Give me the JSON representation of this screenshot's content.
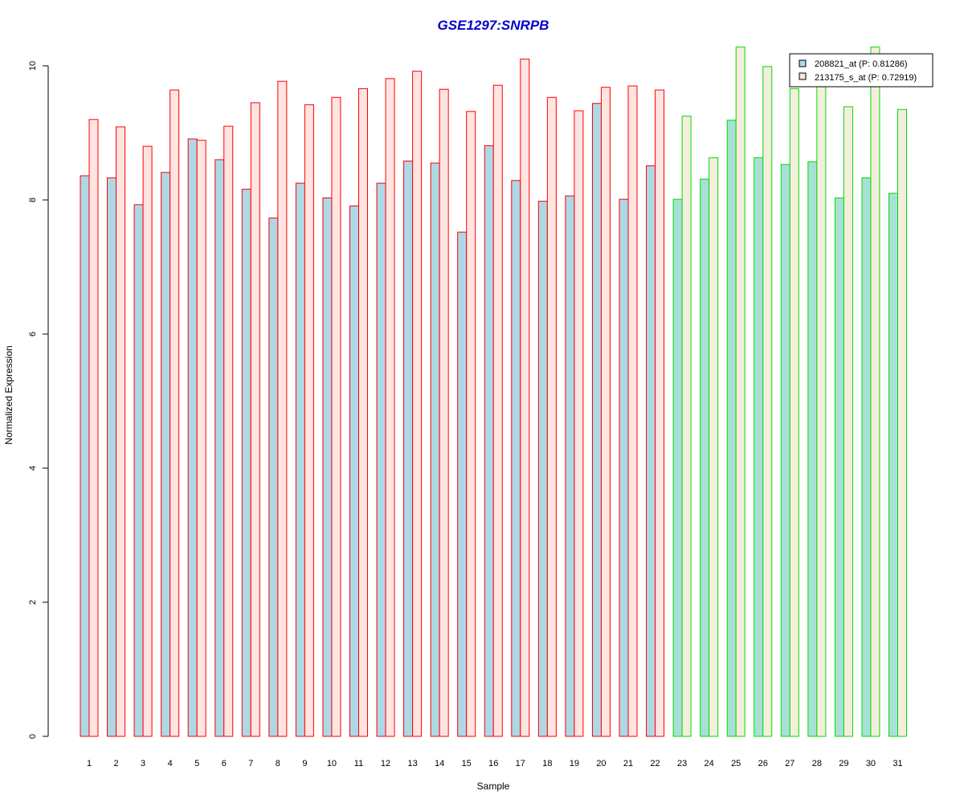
{
  "chart_data": {
    "type": "bar",
    "title": "GSE1297:SNRPB",
    "xlabel": "Sample",
    "ylabel": "Normalized Expression",
    "ylim": [
      0,
      10.3
    ],
    "yticks": [
      "0",
      "2",
      "4",
      "6",
      "8",
      "10"
    ],
    "categories": [
      "1",
      "2",
      "3",
      "4",
      "5",
      "6",
      "7",
      "8",
      "9",
      "10",
      "11",
      "12",
      "13",
      "14",
      "15",
      "16",
      "17",
      "18",
      "19",
      "20",
      "21",
      "22",
      "23",
      "24",
      "25",
      "26",
      "27",
      "28",
      "29",
      "30",
      "31"
    ],
    "group_split": 22,
    "series": [
      {
        "name": "208821_at (P: 0.81286)",
        "values": [
          8.36,
          8.33,
          7.93,
          8.41,
          8.91,
          8.6,
          8.16,
          7.73,
          8.25,
          8.03,
          7.91,
          8.25,
          8.58,
          8.55,
          7.52,
          8.81,
          8.29,
          7.98,
          8.06,
          9.44,
          8.01,
          8.51,
          8.01,
          8.31,
          9.19,
          8.63,
          8.53,
          8.57,
          8.03,
          8.33,
          8.1
        ]
      },
      {
        "name": "213175_s_at (P: 0.72919)",
        "values": [
          9.2,
          9.09,
          8.8,
          9.64,
          8.89,
          9.1,
          9.45,
          9.77,
          9.42,
          9.53,
          9.66,
          9.81,
          9.92,
          9.65,
          9.32,
          9.71,
          10.1,
          9.53,
          9.33,
          9.68,
          9.7,
          9.64,
          9.25,
          8.63,
          10.28,
          9.99,
          9.66,
          9.72,
          9.39,
          10.28,
          9.35
        ]
      }
    ],
    "legend_position": "top-right",
    "colors": {
      "fill_series1": "#ADD8E6",
      "fill_series2_group1": "#FFE4E1",
      "fill_series2_group2": "#F5EEDC",
      "fill_series1_group2": "#A8E0D8",
      "border_group1": "#FF0000",
      "border_group2": "#00DD00",
      "title": "#0000CC"
    }
  }
}
